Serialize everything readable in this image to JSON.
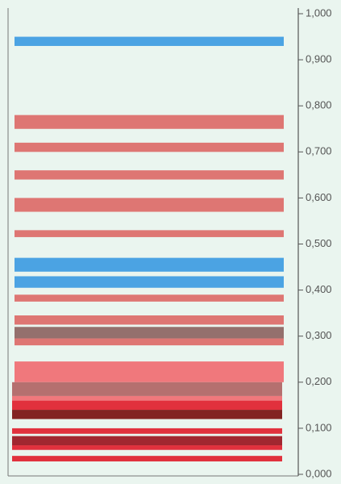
{
  "chart_data": {
    "type": "band",
    "ylim": [
      0,
      1
    ],
    "yticks": [
      {
        "value": 0,
        "label": "0,000"
      },
      {
        "value": 0.1,
        "label": "0,100"
      },
      {
        "value": 0.2,
        "label": "0,200"
      },
      {
        "value": 0.3,
        "label": "0,300"
      },
      {
        "value": 0.4,
        "label": "0,400"
      },
      {
        "value": 0.5,
        "label": "0,500"
      },
      {
        "value": 0.6,
        "label": "0,600"
      },
      {
        "value": 0.7,
        "label": "0,700"
      },
      {
        "value": 0.8,
        "label": "0,800"
      },
      {
        "value": 0.9,
        "label": "0,900"
      },
      {
        "value": 1,
        "label": "1,000"
      }
    ],
    "bands": [
      {
        "low": 0.93,
        "high": 0.95,
        "color": "#3d9be2"
      },
      {
        "low": 0.75,
        "high": 0.78,
        "color": "#dc6a68"
      },
      {
        "low": 0.7,
        "high": 0.72,
        "color": "#dc6a68"
      },
      {
        "low": 0.64,
        "high": 0.66,
        "color": "#dc6a68"
      },
      {
        "low": 0.57,
        "high": 0.6,
        "color": "#dc6a68"
      },
      {
        "low": 0.515,
        "high": 0.53,
        "color": "#dc6a68"
      },
      {
        "low": 0.44,
        "high": 0.47,
        "color": "#3d9be2"
      },
      {
        "low": 0.405,
        "high": 0.43,
        "color": "#3d9be2"
      },
      {
        "low": 0.375,
        "high": 0.39,
        "color": "#dc6a68"
      },
      {
        "low": 0.325,
        "high": 0.345,
        "color": "#dc6a68"
      },
      {
        "low": 0.295,
        "high": 0.32,
        "color": "#8c6462"
      },
      {
        "low": 0.28,
        "high": 0.295,
        "color": "#dc6a68"
      },
      {
        "low": 0.2,
        "high": 0.245,
        "color": "#f06c72"
      },
      {
        "low": 0.17,
        "high": 0.2,
        "color": "#b06464"
      },
      {
        "low": 0.16,
        "high": 0.17,
        "color": "#f06c72"
      },
      {
        "low": 0.14,
        "high": 0.16,
        "color": "#e0202e"
      },
      {
        "low": 0.12,
        "high": 0.14,
        "color": "#7a1010"
      },
      {
        "low": 0.088,
        "high": 0.1,
        "color": "#e0202e"
      },
      {
        "low": 0.063,
        "high": 0.083,
        "color": "#9a1520"
      },
      {
        "low": 0.053,
        "high": 0.063,
        "color": "#e0202e"
      },
      {
        "low": 0.028,
        "high": 0.04,
        "color": "#e0202e"
      }
    ]
  }
}
